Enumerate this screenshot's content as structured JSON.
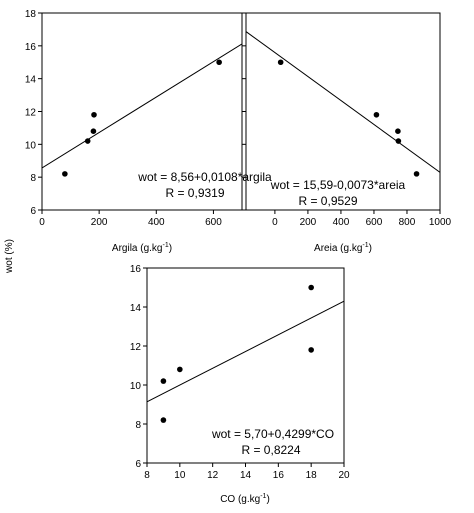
{
  "shared_ylabel": "wot (%)",
  "chart_data": [
    {
      "type": "scatter",
      "id": "argila",
      "xlabel": "Argila (g.kg",
      "xlabel_sup": "-1",
      "xlabel_close": ")",
      "xlim": [
        0,
        700
      ],
      "ylim": [
        6,
        18
      ],
      "xticks": [
        0,
        200,
        400,
        600
      ],
      "yticks": [
        6,
        8,
        10,
        12,
        14,
        16,
        18
      ],
      "ytick_labels_visible": true,
      "points": [
        {
          "x": 80,
          "y": 8.2
        },
        {
          "x": 160,
          "y": 10.2
        },
        {
          "x": 180,
          "y": 10.8
        },
        {
          "x": 182,
          "y": 11.8
        },
        {
          "x": 620,
          "y": 15.0
        }
      ],
      "fit": {
        "intercept": 8.56,
        "slope": 0.0108
      },
      "equation": "wot = 8,56+0,0108*argila",
      "r_text": "R = 0,9319",
      "grid": false
    },
    {
      "type": "scatter",
      "id": "areia",
      "xlabel": "Areia (g.kg",
      "xlabel_sup": "-1",
      "xlabel_close": ")",
      "xlim": [
        -175,
        1000
      ],
      "ylim": [
        6,
        18
      ],
      "xticks": [
        0,
        200,
        400,
        600,
        800,
        1000
      ],
      "yticks": [
        6,
        8,
        10,
        12,
        14,
        16,
        18
      ],
      "ytick_labels_visible": false,
      "points": [
        {
          "x": 35,
          "y": 15.0
        },
        {
          "x": 615,
          "y": 11.8
        },
        {
          "x": 745,
          "y": 10.8
        },
        {
          "x": 748,
          "y": 10.2
        },
        {
          "x": 858,
          "y": 8.2
        }
      ],
      "fit": {
        "intercept": 15.59,
        "slope": -0.0073
      },
      "equation": "wot = 15,59-0,0073*areia",
      "r_text": "R = 0,9529",
      "grid": false
    },
    {
      "type": "scatter",
      "id": "co",
      "xlabel": "CO (g.kg",
      "xlabel_sup": "-1",
      "xlabel_close": ")",
      "xlim": [
        8,
        20
      ],
      "ylim": [
        6,
        16
      ],
      "xticks": [
        8,
        10,
        12,
        14,
        16,
        18,
        20
      ],
      "yticks": [
        6,
        8,
        10,
        12,
        14,
        16
      ],
      "ytick_labels_visible": true,
      "points": [
        {
          "x": 9.0,
          "y": 8.2
        },
        {
          "x": 9.0,
          "y": 10.2
        },
        {
          "x": 10.0,
          "y": 10.8
        },
        {
          "x": 18.0,
          "y": 15.0
        },
        {
          "x": 18.0,
          "y": 11.8
        }
      ],
      "fit": {
        "intercept": 5.7,
        "slope": 0.4299
      },
      "equation": "wot = 5,70+0,4299*CO",
      "r_text": "R = 0,8224",
      "grid": false
    }
  ]
}
